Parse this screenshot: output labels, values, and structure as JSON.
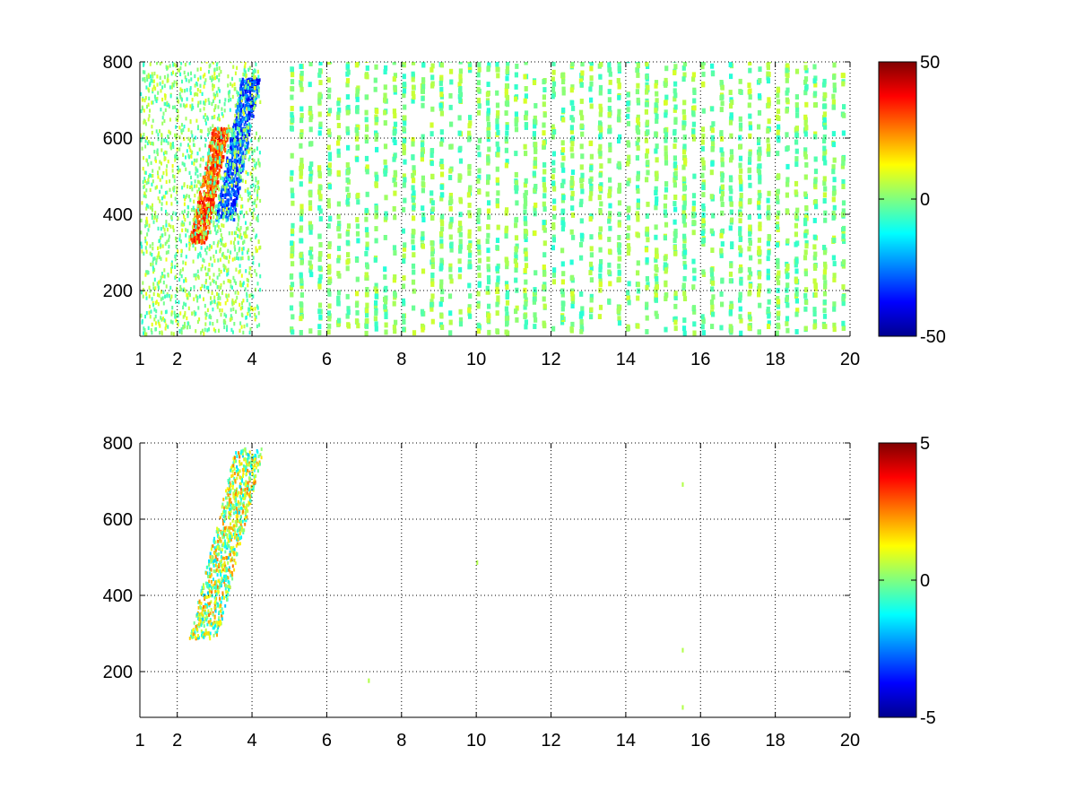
{
  "chart_data": [
    {
      "type": "heatmap",
      "title": "",
      "xlabel": "",
      "ylabel": "",
      "xlim": [
        1,
        20
      ],
      "ylim": [
        80,
        800
      ],
      "xticks": [
        1,
        2,
        4,
        6,
        8,
        10,
        12,
        14,
        16,
        18,
        20
      ],
      "yticks": [
        200,
        400,
        600,
        800
      ],
      "grid": true,
      "grid_style": "dotted",
      "colormap": "jet",
      "clim": [
        -50,
        50
      ],
      "colorbar_ticks": [
        50,
        0,
        -50
      ],
      "features": [
        {
          "name": "positive ridge",
          "x_range": [
            2.3,
            3.2
          ],
          "y_range": [
            320,
            620
          ],
          "value": 40
        },
        {
          "name": "negative ridge",
          "x_range": [
            3.0,
            4.0
          ],
          "y_range": [
            380,
            750
          ],
          "value": -40
        },
        {
          "name": "low-frequency mixed region",
          "x_range": [
            1,
            4.2
          ],
          "y_range": [
            80,
            800
          ],
          "value": 10
        },
        {
          "name": "sparse scatter",
          "x_range": [
            5,
            20
          ],
          "y_range": [
            80,
            800
          ],
          "value": 0
        }
      ]
    },
    {
      "type": "heatmap",
      "title": "",
      "xlabel": "",
      "ylabel": "",
      "xlim": [
        1,
        20
      ],
      "ylim": [
        80,
        800
      ],
      "xticks": [
        1,
        2,
        4,
        6,
        8,
        10,
        12,
        14,
        16,
        18,
        20
      ],
      "yticks": [
        200,
        400,
        600,
        800
      ],
      "grid": true,
      "grid_style": "dotted",
      "colormap": "jet",
      "clim": [
        -5,
        5
      ],
      "colorbar_ticks": [
        5,
        0,
        -5
      ],
      "features": [
        {
          "name": "main cluster",
          "x_range": [
            2.3,
            4.2
          ],
          "y_range": [
            280,
            780
          ],
          "value": 1
        },
        {
          "name": "isolated points",
          "points": [
            [
              7.1,
              170
            ],
            [
              10.0,
              480
            ],
            [
              15.5,
              685
            ],
            [
              15.5,
              250
            ],
            [
              15.5,
              100
            ]
          ],
          "value": 0.5
        }
      ]
    }
  ]
}
